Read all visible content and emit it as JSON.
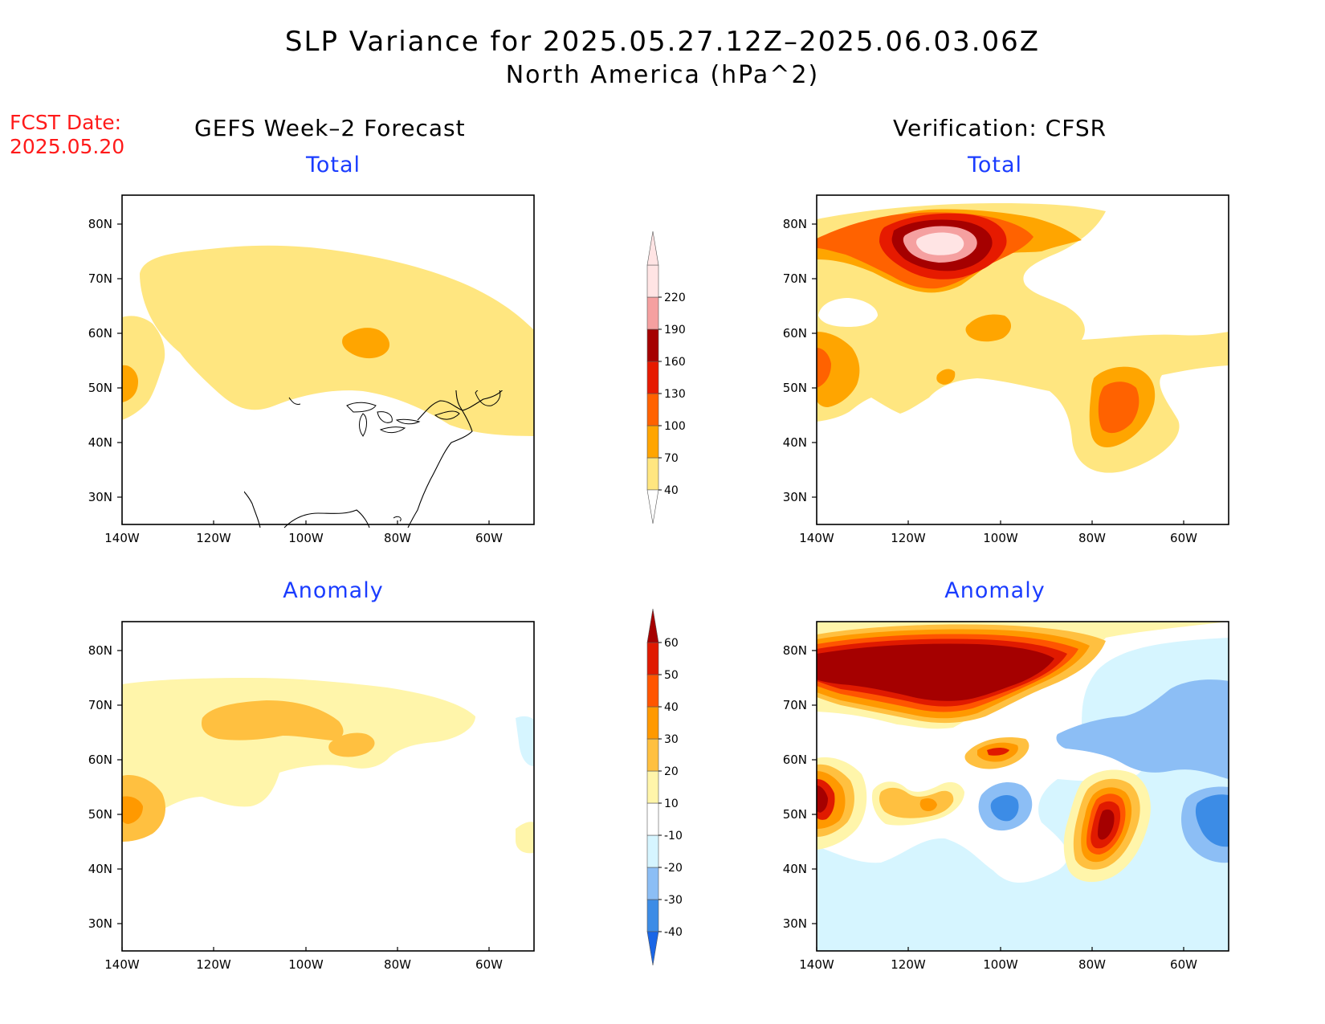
{
  "title": "SLP Variance for 2025.05.27.12Z–2025.06.03.06Z",
  "subtitle": "North America (hPa^2)",
  "fcst_label": "FCST Date:",
  "fcst_date": "2025.05.20",
  "columns": {
    "left": "GEFS Week–2 Forecast",
    "right": "Verification: CFSR"
  },
  "panels": {
    "top_left": "Total",
    "top_right": "Total",
    "bottom_left": "Anomaly",
    "bottom_right": "Anomaly"
  },
  "axes": {
    "lon_labels": [
      "140W",
      "120W",
      "100W",
      "80W",
      "60W"
    ],
    "lat_labels": [
      "80N",
      "70N",
      "60N",
      "50N",
      "40N",
      "30N"
    ]
  },
  "colorbars": {
    "total": {
      "labels": [
        "40",
        "70",
        "100",
        "130",
        "160",
        "190",
        "220"
      ],
      "colors": [
        "#ffe680",
        "#ffa500",
        "#ff6200",
        "#e61a00",
        "#a50000",
        "#f5a0a0",
        "#ffe4e4"
      ]
    },
    "anomaly": {
      "labels": [
        "-40",
        "-30",
        "-20",
        "-10",
        "10",
        "20",
        "30",
        "40",
        "50",
        "60"
      ],
      "colors": [
        "#1a66e6",
        "#3c8ce6",
        "#8cbef5",
        "#d6f5ff",
        "#ffffff",
        "#fff5aa",
        "#ffc040",
        "#ff9900",
        "#ff5500",
        "#e01a00",
        "#a50000"
      ]
    }
  },
  "palette": {
    "t1": "#ffe680",
    "t2": "#ffa500",
    "t3": "#ff6200",
    "t4": "#e61a00",
    "t5": "#a50000",
    "t6": "#f5a0a0",
    "t7": "#ffe4e4",
    "a_pos1": "#fff5aa",
    "a_pos2": "#ffc040",
    "a_pos3": "#ff9900",
    "a_pos4": "#ff5500",
    "a_pos5": "#e01a00",
    "a_pos6": "#a50000",
    "a_neg1": "#d6f5ff",
    "a_neg2": "#8cbef5",
    "a_neg3": "#3c8ce6",
    "a_neg4": "#1a66e6"
  }
}
